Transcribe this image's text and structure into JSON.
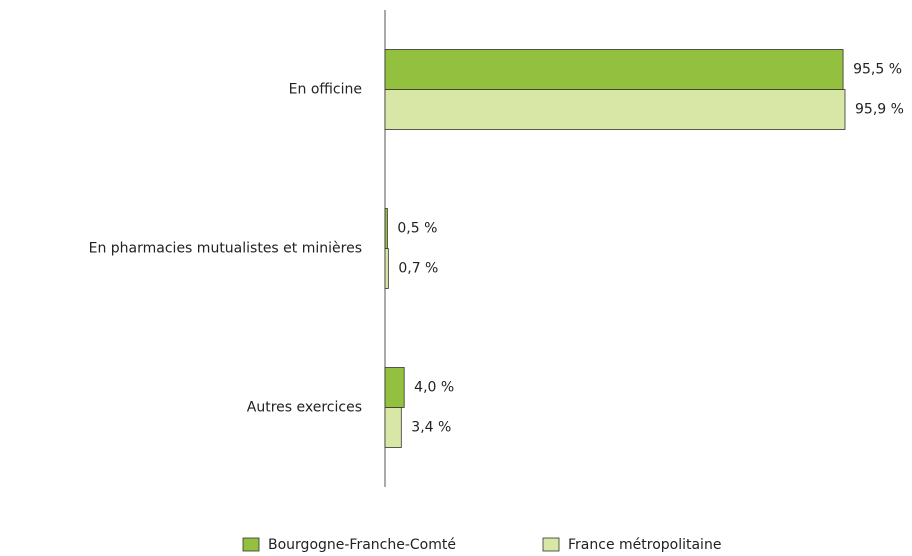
{
  "chart_data": {
    "type": "hbar",
    "categories": [
      "En officine",
      "En pharmacies mutualistes et minières",
      "Autres exercices"
    ],
    "series": [
      {
        "name": "Bourgogne-Franche-Comté",
        "color": "#93c13f",
        "values": [
          95.5,
          0.5,
          4.0
        ],
        "value_labels": [
          "95,5 %",
          "0,5 %",
          "4,0 %"
        ]
      },
      {
        "name": "France métropolitaine",
        "color": "#d8e7a6",
        "values": [
          95.9,
          0.7,
          3.4
        ],
        "value_labels": [
          "95,9 %",
          "0,7 %",
          "3,4 %"
        ]
      }
    ],
    "legend": "bottom"
  }
}
